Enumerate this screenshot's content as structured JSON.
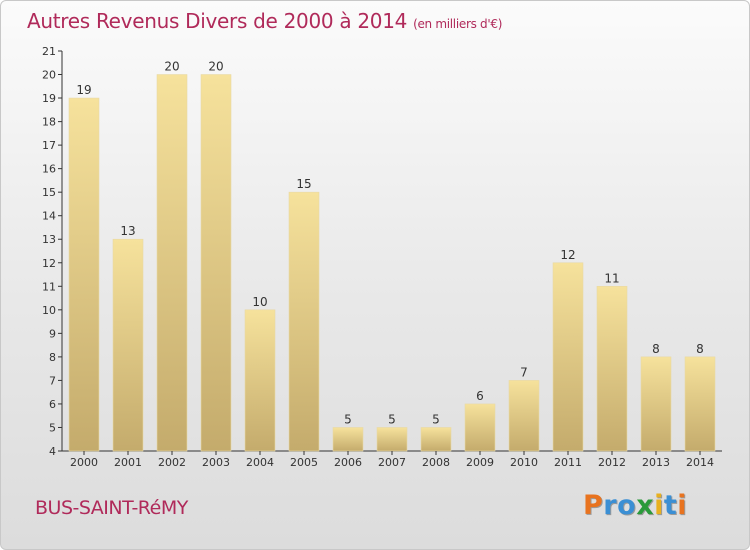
{
  "title": "Autres Revenus Divers de 2000 à 2014",
  "title_unit": "(en milliers d'€)",
  "commune": "BUS-SAINT-RéMY",
  "logo": {
    "letters": [
      "P",
      "r",
      "o",
      "x",
      "i",
      "t",
      "i"
    ],
    "colors": [
      "#e8731f",
      "#3b8fd4",
      "#3b8fd4",
      "#2a9a3a",
      "#e8b01f",
      "#3b8fd4",
      "#e8731f"
    ]
  },
  "colors": {
    "title": "#b02a5a",
    "bar_light": "#f6e29c",
    "bar_dark": "#c4ab6c"
  },
  "chart_data": {
    "type": "bar",
    "title": "Autres Revenus Divers de 2000 à 2014",
    "categories": [
      "2000",
      "2001",
      "2002",
      "2003",
      "2004",
      "2005",
      "2006",
      "2007",
      "2008",
      "2009",
      "2010",
      "2011",
      "2012",
      "2013",
      "2014"
    ],
    "values": [
      19,
      13,
      20,
      20,
      10,
      15,
      5,
      5,
      5,
      6,
      7,
      12,
      11,
      8,
      8
    ],
    "ylim": [
      4,
      21
    ],
    "yticks": [
      4,
      5,
      6,
      7,
      8,
      9,
      10,
      11,
      12,
      13,
      14,
      15,
      16,
      17,
      18,
      19,
      20,
      21
    ],
    "grid": false,
    "xlabel": "",
    "ylabel": ""
  }
}
